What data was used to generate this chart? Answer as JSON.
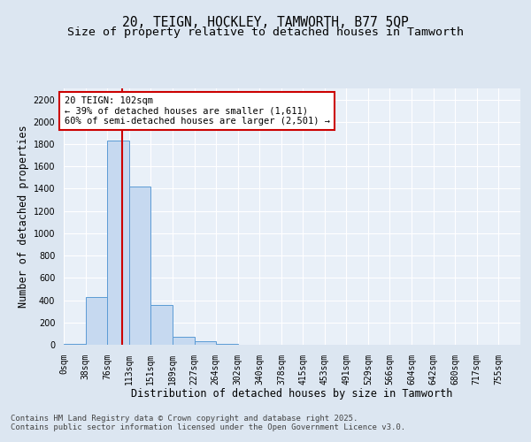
{
  "title_line1": "20, TEIGN, HOCKLEY, TAMWORTH, B77 5QP",
  "title_line2": "Size of property relative to detached houses in Tamworth",
  "xlabel": "Distribution of detached houses by size in Tamworth",
  "ylabel": "Number of detached properties",
  "bin_labels": [
    "0sqm",
    "38sqm",
    "76sqm",
    "113sqm",
    "151sqm",
    "189sqm",
    "227sqm",
    "264sqm",
    "302sqm",
    "340sqm",
    "378sqm",
    "415sqm",
    "453sqm",
    "491sqm",
    "529sqm",
    "566sqm",
    "604sqm",
    "642sqm",
    "680sqm",
    "717sqm",
    "755sqm"
  ],
  "bin_edges_sqm": [
    0,
    38,
    76,
    113,
    151,
    189,
    227,
    264,
    302,
    340,
    378,
    415,
    453,
    491,
    529,
    566,
    604,
    642,
    680,
    717,
    755
  ],
  "bar_heights": [
    10,
    430,
    1830,
    1420,
    355,
    75,
    30,
    10,
    0,
    0,
    0,
    0,
    0,
    0,
    0,
    0,
    0,
    0,
    0,
    0
  ],
  "bar_color": "#c6d9f0",
  "bar_edge_color": "#5b9bd5",
  "property_size_sqm": 102,
  "red_line_color": "#cc0000",
  "annotation_text": "20 TEIGN: 102sqm\n← 39% of detached houses are smaller (1,611)\n60% of semi-detached houses are larger (2,501) →",
  "annotation_box_facecolor": "#ffffff",
  "annotation_border_color": "#cc0000",
  "ylim": [
    0,
    2300
  ],
  "yticks": [
    0,
    200,
    400,
    600,
    800,
    1000,
    1200,
    1400,
    1600,
    1800,
    2000,
    2200
  ],
  "bg_color": "#dce6f1",
  "plot_bg_color": "#e9f0f8",
  "grid_color": "#ffffff",
  "footer_line1": "Contains HM Land Registry data © Crown copyright and database right 2025.",
  "footer_line2": "Contains public sector information licensed under the Open Government Licence v3.0.",
  "title_fontsize": 10.5,
  "subtitle_fontsize": 9.5,
  "axis_label_fontsize": 8.5,
  "tick_fontsize": 7,
  "annotation_fontsize": 7.5,
  "footer_fontsize": 6.5
}
